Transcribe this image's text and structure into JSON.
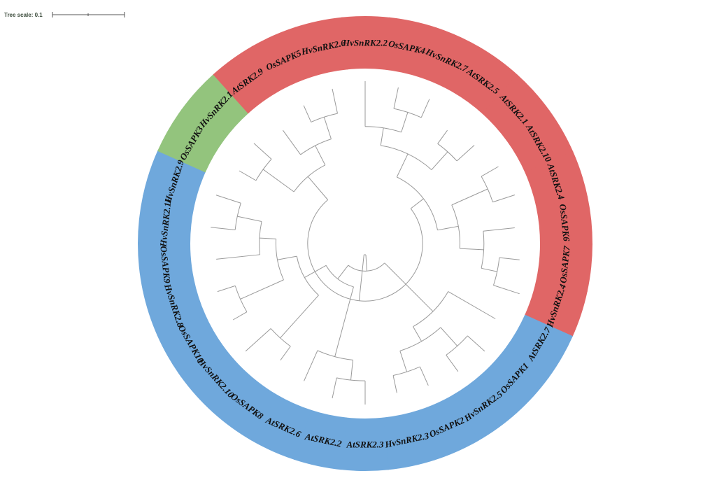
{
  "scale": {
    "label": "Tree scale: 0.1"
  },
  "colors": {
    "red": "#e06666",
    "green": "#93c47d",
    "blue": "#6fa8dc",
    "branch": "#9a9a9a",
    "label": "#111111"
  },
  "leaves": [
    {
      "label": "HvSnRK2.2",
      "group": "red"
    },
    {
      "label": "OsSAPK4",
      "group": "red"
    },
    {
      "label": "HvSnRK2.7",
      "group": "red"
    },
    {
      "label": "AtSRK2.5",
      "group": "red"
    },
    {
      "label": "AtSRK2.1",
      "group": "red"
    },
    {
      "label": "AtSRK2.10",
      "group": "red"
    },
    {
      "label": "AtSRK2.4",
      "group": "red"
    },
    {
      "label": "OsSAPK6",
      "group": "red"
    },
    {
      "label": "OsSAPK7",
      "group": "red"
    },
    {
      "label": "HvSnRK2.4",
      "group": "red"
    },
    {
      "label": "AtSRK2.7",
      "group": "blue"
    },
    {
      "label": "OsSAPK1",
      "group": "blue"
    },
    {
      "label": "HvSnRK2.5",
      "group": "blue"
    },
    {
      "label": "OsSAPK2",
      "group": "blue"
    },
    {
      "label": "HvSnRK2.3",
      "group": "blue"
    },
    {
      "label": "AtSRK2.3",
      "group": "blue"
    },
    {
      "label": "AtSRK2.2",
      "group": "blue"
    },
    {
      "label": "AtSRK2.6",
      "group": "blue"
    },
    {
      "label": "OsSAPK8",
      "group": "blue"
    },
    {
      "label": "HvSnRK2.10",
      "group": "blue"
    },
    {
      "label": "OsSAPK10",
      "group": "blue"
    },
    {
      "label": "HvSnRK2.8",
      "group": "blue"
    },
    {
      "label": "OsSAPK9",
      "group": "blue"
    },
    {
      "label": "HvSnRK2.11",
      "group": "blue"
    },
    {
      "label": "HvSnRK2.9",
      "group": "blue"
    },
    {
      "label": "OsSAPK3",
      "group": "green"
    },
    {
      "label": "HvSnRK2.1",
      "group": "green"
    },
    {
      "label": "AtSRK2.9",
      "group": "red"
    },
    {
      "label": "OsSAPK5",
      "group": "red"
    },
    {
      "label": "HvSnRK2.6",
      "group": "red"
    }
  ]
}
